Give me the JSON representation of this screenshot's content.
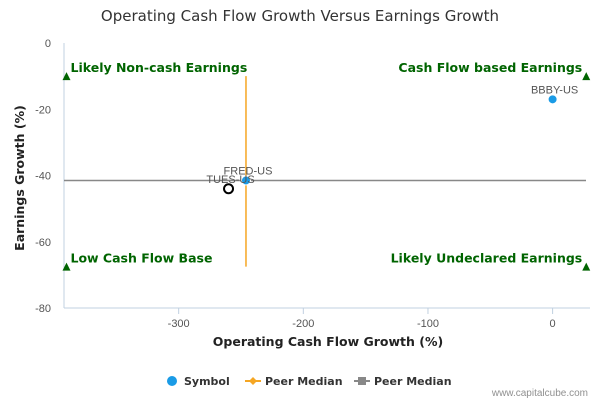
{
  "chart_data": {
    "type": "scatter",
    "title": "Operating Cash Flow Growth Versus Earnings Growth",
    "xlabel": "Operating Cash Flow Growth (%)",
    "ylabel": "Earnings Growth (%)",
    "xlim": [
      -392,
      30
    ],
    "ylim": [
      -80,
      0
    ],
    "x_ticks": [
      -300,
      -200,
      -100,
      0
    ],
    "y_ticks": [
      0,
      -20,
      -40,
      -60,
      -80
    ],
    "grid": false,
    "points": [
      {
        "name": "BBBY-US",
        "x": 0,
        "y": -17,
        "style": "peer"
      },
      {
        "name": "FRED-US",
        "x": -246,
        "y": -41.5,
        "style": "peer"
      },
      {
        "name": "TUES-US",
        "x": -260,
        "y": -44,
        "style": "symbol"
      }
    ],
    "peer_median_x": -246,
    "peer_median_y": -41.5,
    "quadrant_labels": [
      {
        "text": "Likely Non-cash Earnings",
        "position": "top-left"
      },
      {
        "text": "Cash Flow based Earnings",
        "position": "top-right"
      },
      {
        "text": "Low Cash Flow Base",
        "position": "bottom-left"
      },
      {
        "text": "Likely Undeclared Earnings",
        "position": "bottom-right"
      }
    ],
    "legend": [
      {
        "label": "Symbol",
        "marker": "circle",
        "color": "#1a9be6"
      },
      {
        "label": "Peer Median",
        "marker": "diamond",
        "color": "#f5a623"
      },
      {
        "label": "Peer Median",
        "marker": "square",
        "color": "#888888"
      }
    ],
    "legend_position": "bottom-center",
    "colors": {
      "peer_point": "#1a9be6",
      "symbol_outline": "#000000",
      "median_x_line": "#f5a623",
      "median_y_line": "#888888",
      "quadrant_text": "#006400",
      "axis": "#c0d0e0"
    }
  },
  "credit": "www.capitalcube.com"
}
